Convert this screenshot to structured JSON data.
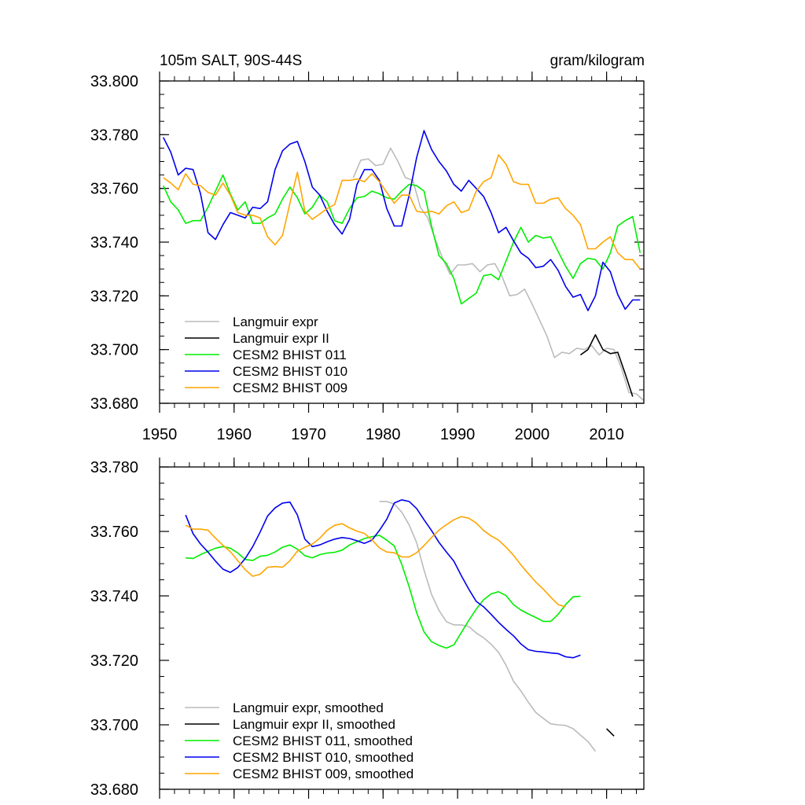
{
  "chart_data": [
    {
      "type": "line",
      "title_left": "105m SALT, 90S-44S",
      "title_right": "gram/kilogram",
      "xlabel": "",
      "ylabel": "",
      "xlim": [
        1950,
        2015
      ],
      "ylim": [
        33.68,
        33.8
      ],
      "xticks": [
        1950,
        1960,
        1970,
        1980,
        1990,
        2000,
        2010
      ],
      "xtick_labels": [
        "1950",
        "1960",
        "1970",
        "1980",
        "1990",
        "2000",
        "2010"
      ],
      "yticks": [
        33.68,
        33.7,
        33.72,
        33.74,
        33.76,
        33.78,
        33.8
      ],
      "ytick_labels": [
        "33.680",
        "33.700",
        "33.720",
        "33.740",
        "33.760",
        "33.780",
        "33.800"
      ],
      "legend_position": "bottom-left",
      "series": [
        {
          "name": "Langmuir expr",
          "color": "#bbbbbb",
          "x_start": 1976,
          "values": [
            33.764,
            33.7705,
            33.771,
            33.7685,
            33.769,
            33.775,
            33.77,
            33.764,
            33.763,
            33.753,
            33.749,
            33.741,
            33.734,
            33.728,
            33.7315,
            33.7315,
            33.732,
            33.729,
            33.7315,
            33.732,
            33.727,
            33.72,
            33.7205,
            33.7225,
            33.717,
            33.711,
            33.705,
            33.697,
            33.699,
            33.6985,
            33.7005,
            33.7,
            33.7015,
            33.698,
            33.7005,
            33.7,
            33.693,
            33.684,
            33.6835,
            33.681
          ]
        },
        {
          "name": "Langmuir expr II",
          "color": "#000000",
          "x_start": 2006.5,
          "values": [
            33.698,
            33.7,
            33.7055,
            33.7,
            33.6985,
            33.699,
            33.691,
            33.6825
          ]
        },
        {
          "name": "CESM2 BHIST 011",
          "color": "#00ee00",
          "x_start": 1950.5,
          "values": [
            33.761,
            33.755,
            33.752,
            33.747,
            33.748,
            33.748,
            33.753,
            33.759,
            33.765,
            33.758,
            33.752,
            33.755,
            33.747,
            33.747,
            33.749,
            33.7505,
            33.756,
            33.7605,
            33.7565,
            33.7505,
            33.753,
            33.7575,
            33.755,
            33.748,
            33.747,
            33.7525,
            33.7565,
            33.757,
            33.759,
            33.758,
            33.7565,
            33.756,
            33.759,
            33.7615,
            33.761,
            33.759,
            33.746,
            33.735,
            33.732,
            33.7265,
            33.717,
            33.719,
            33.721,
            33.7275,
            33.728,
            33.726,
            33.733,
            33.74,
            33.7455,
            33.74,
            33.7425,
            33.7415,
            33.742,
            33.7365,
            33.731,
            33.7265,
            33.732,
            33.734,
            33.7335,
            33.73,
            33.736,
            33.746,
            33.748,
            33.7495,
            33.736
          ]
        },
        {
          "name": "CESM2 BHIST 010",
          "color": "#0000ee",
          "x_start": 1950.5,
          "values": [
            33.779,
            33.7735,
            33.765,
            33.7675,
            33.767,
            33.758,
            33.7435,
            33.741,
            33.7465,
            33.751,
            33.75,
            33.749,
            33.753,
            33.7525,
            33.755,
            33.767,
            33.774,
            33.7765,
            33.7775,
            33.77,
            33.7605,
            33.7575,
            33.7515,
            33.7465,
            33.743,
            33.7485,
            33.7615,
            33.767,
            33.767,
            33.763,
            33.7525,
            33.746,
            33.746,
            33.7575,
            33.7715,
            33.7815,
            33.7745,
            33.77,
            33.7665,
            33.7615,
            33.759,
            33.763,
            33.76,
            33.757,
            33.751,
            33.7435,
            33.7455,
            33.7405,
            33.736,
            33.734,
            33.7305,
            33.731,
            33.7335,
            33.7295,
            33.7235,
            33.7195,
            33.7205,
            33.7145,
            33.72,
            33.7325,
            33.729,
            33.7205,
            33.715,
            33.7185,
            33.7185
          ]
        },
        {
          "name": "CESM2 BHIST 009",
          "color": "#ffa500",
          "x_start": 1950.5,
          "values": [
            33.764,
            33.762,
            33.7595,
            33.7655,
            33.7615,
            33.761,
            33.7585,
            33.7575,
            33.762,
            33.7575,
            33.751,
            33.75,
            33.75,
            33.749,
            33.742,
            33.739,
            33.7425,
            33.7545,
            33.766,
            33.7515,
            33.7485,
            33.7505,
            33.7525,
            33.754,
            33.763,
            33.763,
            33.7635,
            33.7625,
            33.7655,
            33.7625,
            33.7585,
            33.7545,
            33.7575,
            33.7575,
            33.7515,
            33.751,
            33.7515,
            33.7505,
            33.7535,
            33.755,
            33.751,
            33.752,
            33.759,
            33.7625,
            33.764,
            33.7725,
            33.769,
            33.7625,
            33.7615,
            33.7615,
            33.7545,
            33.7545,
            33.756,
            33.7565,
            33.7525,
            33.75,
            33.7465,
            33.7375,
            33.7375,
            33.74,
            33.742,
            33.736,
            33.7335,
            33.7335,
            33.73
          ]
        }
      ]
    },
    {
      "type": "line",
      "xlabel": "",
      "ylabel": "",
      "xlim": [
        1950,
        2015
      ],
      "ylim": [
        33.68,
        33.78
      ],
      "xticks": [
        1950,
        1960,
        1970,
        1980,
        1990,
        2000,
        2010
      ],
      "yticks": [
        33.68,
        33.7,
        33.72,
        33.74,
        33.76,
        33.78
      ],
      "ytick_labels": [
        "33.680",
        "33.700",
        "33.720",
        "33.740",
        "33.760",
        "33.780"
      ],
      "legend_position": "bottom-left",
      "series": [
        {
          "name": "Langmuir expr, smoothed",
          "color": "#bbbbbb",
          "x_start": 1979.5,
          "values": [
            33.7693,
            33.7693,
            33.7685,
            33.766,
            33.762,
            33.7565,
            33.748,
            33.7405,
            33.7355,
            33.732,
            33.731,
            33.731,
            33.7305,
            33.7285,
            33.727,
            33.725,
            33.7225,
            33.7185,
            33.7135,
            33.7105,
            33.707,
            33.7038,
            33.702,
            33.7003,
            33.7,
            33.6998,
            33.6988,
            33.6968,
            33.6948,
            33.6918
          ]
        },
        {
          "name": "Langmuir expr II, smoothed",
          "color": "#000000",
          "x_start": 2010,
          "values": [
            33.6988,
            33.6965
          ]
        },
        {
          "name": "CESM2 BHIST 011, smoothed",
          "color": "#00ee00",
          "x_start": 1953.5,
          "values": [
            33.7518,
            33.7516,
            33.7528,
            33.7538,
            33.7548,
            33.7553,
            33.7548,
            33.7533,
            33.7513,
            33.751,
            33.7523,
            33.7526,
            33.7536,
            33.7551,
            33.7558,
            33.7545,
            33.7525,
            33.7518,
            33.7528,
            33.7533,
            33.7535,
            33.7542,
            33.7558,
            33.7568,
            33.7578,
            33.7584,
            33.7588,
            33.7573,
            33.7555,
            33.7498,
            33.7428,
            33.7348,
            33.7288,
            33.7258,
            33.7246,
            33.7238,
            33.7248,
            33.7286,
            33.7324,
            33.7359,
            33.7388,
            33.7406,
            33.7413,
            33.7401,
            33.7373,
            33.7356,
            33.7344,
            33.7333,
            33.7321,
            33.7321,
            33.7343,
            33.7373,
            33.7397,
            33.7399
          ]
        },
        {
          "name": "CESM2 BHIST 010, smoothed",
          "color": "#0000ee",
          "x_start": 1953.5,
          "values": [
            33.7651,
            33.7593,
            33.7561,
            33.7536,
            33.7508,
            33.7483,
            33.7473,
            33.7488,
            33.7516,
            33.7553,
            33.7598,
            33.7648,
            33.7673,
            33.7688,
            33.7691,
            33.7651,
            33.7576,
            33.7553,
            33.7558,
            33.7568,
            33.7576,
            33.7581,
            33.7578,
            33.7571,
            33.7563,
            33.7573,
            33.7603,
            33.7638,
            33.7688,
            33.7698,
            33.7693,
            33.7671,
            33.7636,
            33.7603,
            33.7566,
            33.7536,
            33.7508,
            33.7463,
            33.7421,
            33.7383,
            33.7366,
            33.7343,
            33.7318,
            33.7296,
            33.7276,
            33.7251,
            33.7233,
            33.7228,
            33.7226,
            33.7223,
            33.7221,
            33.7211,
            33.7208,
            33.7216
          ]
        },
        {
          "name": "CESM2 BHIST 009, smoothed",
          "color": "#ffa500",
          "x_start": 1953.5,
          "values": [
            33.7619,
            33.7607,
            33.7607,
            33.7604,
            33.7579,
            33.7557,
            33.7537,
            33.7509,
            33.7481,
            33.7461,
            33.7467,
            33.7489,
            33.7491,
            33.7489,
            33.7509,
            33.7539,
            33.7551,
            33.7561,
            33.7579,
            33.7604,
            33.7619,
            33.7624,
            33.7611,
            33.7601,
            33.7594,
            33.7574,
            33.7549,
            33.7536,
            33.7534,
            33.7521,
            33.7521,
            33.7534,
            33.7556,
            33.7581,
            33.7604,
            33.7621,
            33.7636,
            33.7646,
            33.7641,
            33.7626,
            33.7603,
            33.7586,
            33.7573,
            33.7551,
            33.7526,
            33.7496,
            33.7469,
            33.7443,
            33.7421,
            33.7396,
            33.7373,
            33.7366
          ]
        }
      ]
    }
  ]
}
